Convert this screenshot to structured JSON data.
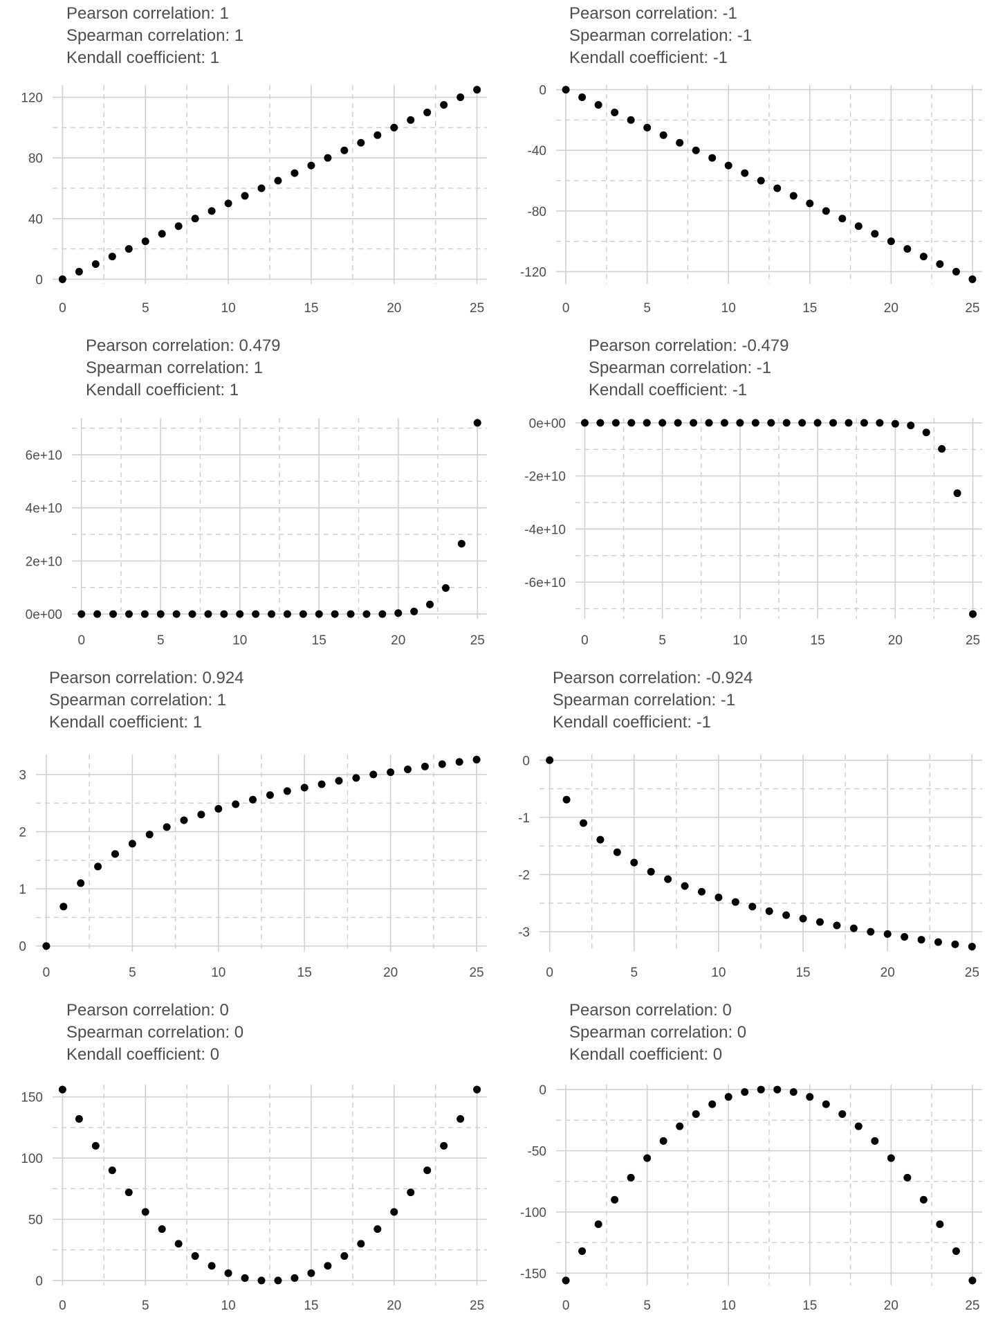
{
  "chart_data": [
    {
      "type": "scatter",
      "titles": [
        "Pearson correlation: 1",
        "Spearman correlation: 1",
        "Kendall coefficient: 1"
      ],
      "x": [
        0,
        1,
        2,
        3,
        4,
        5,
        6,
        7,
        8,
        9,
        10,
        11,
        12,
        13,
        14,
        15,
        16,
        17,
        18,
        19,
        20,
        21,
        22,
        23,
        24,
        25
      ],
      "y": [
        0,
        5,
        10,
        15,
        20,
        25,
        30,
        35,
        40,
        45,
        50,
        55,
        60,
        65,
        70,
        75,
        80,
        85,
        90,
        95,
        100,
        105,
        110,
        115,
        120,
        125
      ],
      "xlim": [
        -0.6,
        25.6
      ],
      "ylim": [
        -3,
        128
      ],
      "xticks": [
        0,
        5,
        10,
        15,
        20,
        25
      ],
      "xtick_labels": [
        "0",
        "5",
        "10",
        "15",
        "20",
        "25"
      ],
      "xminor": [
        2.5,
        7.5,
        12.5,
        17.5,
        22.5
      ],
      "yticks": [
        0,
        40,
        80,
        120
      ],
      "ytick_labels": [
        "0",
        "40",
        "80",
        "120"
      ],
      "yminor": [
        20,
        60,
        100
      ],
      "grid": true
    },
    {
      "type": "scatter",
      "titles": [
        "Pearson correlation: -1",
        "Spearman correlation: -1",
        "Kendall coefficient: -1"
      ],
      "x": [
        0,
        1,
        2,
        3,
        4,
        5,
        6,
        7,
        8,
        9,
        10,
        11,
        12,
        13,
        14,
        15,
        16,
        17,
        18,
        19,
        20,
        21,
        22,
        23,
        24,
        25
      ],
      "y": [
        0,
        -5,
        -10,
        -15,
        -20,
        -25,
        -30,
        -35,
        -40,
        -45,
        -50,
        -55,
        -60,
        -65,
        -70,
        -75,
        -80,
        -85,
        -90,
        -95,
        -100,
        -105,
        -110,
        -115,
        -120,
        -125
      ],
      "xlim": [
        -0.6,
        25.6
      ],
      "ylim": [
        -128,
        3
      ],
      "xticks": [
        0,
        5,
        10,
        15,
        20,
        25
      ],
      "xtick_labels": [
        "0",
        "5",
        "10",
        "15",
        "20",
        "25"
      ],
      "xminor": [
        2.5,
        7.5,
        12.5,
        17.5,
        22.5
      ],
      "yticks": [
        0,
        -40,
        -80,
        -120
      ],
      "ytick_labels": [
        "0",
        "-40",
        "-80",
        "-120"
      ],
      "yminor": [
        -20,
        -60,
        -100
      ],
      "grid": true
    },
    {
      "type": "scatter",
      "titles": [
        "Pearson correlation: 0.479",
        "Spearman correlation: 1",
        "Kendall coefficient: 1"
      ],
      "x": [
        0,
        1,
        2,
        3,
        4,
        5,
        6,
        7,
        8,
        9,
        10,
        11,
        12,
        13,
        14,
        15,
        16,
        17,
        18,
        19,
        20,
        21,
        22,
        23,
        24,
        25
      ],
      "y": [
        0,
        0,
        0,
        0,
        0,
        0,
        0,
        0,
        0,
        0,
        0,
        0,
        0,
        0,
        0,
        0,
        0,
        0,
        0,
        0,
        360000000,
        980000000,
        3600000000,
        9800000000,
        26500000000,
        72000000000
      ],
      "xlim": [
        -0.6,
        25.6
      ],
      "ylim": [
        -1800000000,
        73800000000
      ],
      "xticks": [
        0,
        5,
        10,
        15,
        20,
        25
      ],
      "xtick_labels": [
        "0",
        "5",
        "10",
        "15",
        "20",
        "25"
      ],
      "xminor": [
        2.5,
        7.5,
        12.5,
        17.5,
        22.5
      ],
      "yticks": [
        0,
        20000000000,
        40000000000,
        60000000000
      ],
      "ytick_labels": [
        "0e+00",
        "2e+10",
        "4e+10",
        "6e+10"
      ],
      "yminor": [
        10000000000,
        30000000000,
        50000000000,
        70000000000
      ],
      "grid": true
    },
    {
      "type": "scatter",
      "titles": [
        "Pearson correlation: -0.479",
        "Spearman correlation: -1",
        "Kendall coefficient: -1"
      ],
      "x": [
        0,
        1,
        2,
        3,
        4,
        5,
        6,
        7,
        8,
        9,
        10,
        11,
        12,
        13,
        14,
        15,
        16,
        17,
        18,
        19,
        20,
        21,
        22,
        23,
        24,
        25
      ],
      "y": [
        0,
        0,
        0,
        0,
        0,
        0,
        0,
        0,
        0,
        0,
        0,
        0,
        0,
        0,
        0,
        0,
        0,
        0,
        0,
        0,
        -360000000,
        -980000000,
        -3600000000,
        -9800000000,
        -26500000000,
        -72000000000
      ],
      "xlim": [
        -0.6,
        25.6
      ],
      "ylim": [
        -73800000000,
        1800000000
      ],
      "xticks": [
        0,
        5,
        10,
        15,
        20,
        25
      ],
      "xtick_labels": [
        "0",
        "5",
        "10",
        "15",
        "20",
        "25"
      ],
      "xminor": [
        2.5,
        7.5,
        12.5,
        17.5,
        22.5
      ],
      "yticks": [
        0,
        -20000000000,
        -40000000000,
        -60000000000
      ],
      "ytick_labels": [
        "0e+00",
        "-2e+10",
        "-4e+10",
        "-6e+10"
      ],
      "yminor": [
        -10000000000,
        -30000000000,
        -50000000000,
        -70000000000
      ],
      "grid": true
    },
    {
      "type": "scatter",
      "titles": [
        "Pearson correlation: 0.924",
        "Spearman correlation: 1",
        "Kendall coefficient: 1"
      ],
      "x": [
        0,
        1,
        2,
        3,
        4,
        5,
        6,
        7,
        8,
        9,
        10,
        11,
        12,
        13,
        14,
        15,
        16,
        17,
        18,
        19,
        20,
        21,
        22,
        23,
        24,
        25
      ],
      "y": [
        0,
        0.69,
        1.1,
        1.39,
        1.61,
        1.79,
        1.95,
        2.08,
        2.2,
        2.3,
        2.4,
        2.48,
        2.56,
        2.64,
        2.71,
        2.77,
        2.83,
        2.89,
        2.94,
        3.0,
        3.04,
        3.09,
        3.14,
        3.18,
        3.22,
        3.26
      ],
      "xlim": [
        -0.6,
        25.6
      ],
      "ylim": [
        -0.1,
        3.35
      ],
      "xticks": [
        0,
        5,
        10,
        15,
        20,
        25
      ],
      "xtick_labels": [
        "0",
        "5",
        "10",
        "15",
        "20",
        "25"
      ],
      "xminor": [
        2.5,
        7.5,
        12.5,
        17.5,
        22.5
      ],
      "yticks": [
        0,
        1,
        2,
        3
      ],
      "ytick_labels": [
        "0",
        "1",
        "2",
        "3"
      ],
      "yminor": [
        0.5,
        1.5,
        2.5
      ],
      "grid": true
    },
    {
      "type": "scatter",
      "titles": [
        "Pearson correlation: -0.924",
        "Spearman correlation: -1",
        "Kendall coefficient: -1"
      ],
      "x": [
        0,
        1,
        2,
        3,
        4,
        5,
        6,
        7,
        8,
        9,
        10,
        11,
        12,
        13,
        14,
        15,
        16,
        17,
        18,
        19,
        20,
        21,
        22,
        23,
        24,
        25
      ],
      "y": [
        0,
        -0.69,
        -1.1,
        -1.39,
        -1.61,
        -1.79,
        -1.95,
        -2.08,
        -2.2,
        -2.3,
        -2.4,
        -2.48,
        -2.56,
        -2.64,
        -2.71,
        -2.77,
        -2.83,
        -2.89,
        -2.94,
        -3.0,
        -3.04,
        -3.09,
        -3.14,
        -3.18,
        -3.22,
        -3.26
      ],
      "xlim": [
        -0.6,
        25.6
      ],
      "ylim": [
        -3.35,
        0.1
      ],
      "xticks": [
        0,
        5,
        10,
        15,
        20,
        25
      ],
      "xtick_labels": [
        "0",
        "5",
        "10",
        "15",
        "20",
        "25"
      ],
      "xminor": [
        2.5,
        7.5,
        12.5,
        17.5,
        22.5
      ],
      "yticks": [
        0,
        -1,
        -2,
        -3
      ],
      "ytick_labels": [
        "0",
        "-1",
        "-2",
        "-3"
      ],
      "yminor": [
        -0.5,
        -1.5,
        -2.5
      ],
      "grid": true
    },
    {
      "type": "scatter",
      "titles": [
        "Pearson correlation: 0",
        "Spearman correlation: 0",
        "Kendall coefficient: 0"
      ],
      "x": [
        0,
        1,
        2,
        3,
        4,
        5,
        6,
        7,
        8,
        9,
        10,
        11,
        12,
        13,
        14,
        15,
        16,
        17,
        18,
        19,
        20,
        21,
        22,
        23,
        24,
        25
      ],
      "y": [
        156,
        132,
        110,
        90,
        72,
        56,
        42,
        30,
        20,
        12,
        6,
        2,
        0,
        0,
        2,
        6,
        12,
        20,
        30,
        42,
        56,
        72,
        90,
        110,
        132,
        156
      ],
      "xlim": [
        -0.6,
        25.6
      ],
      "ylim": [
        -4,
        160
      ],
      "xticks": [
        0,
        5,
        10,
        15,
        20,
        25
      ],
      "xtick_labels": [
        "0",
        "5",
        "10",
        "15",
        "20",
        "25"
      ],
      "xminor": [
        2.5,
        7.5,
        12.5,
        17.5,
        22.5
      ],
      "yticks": [
        0,
        50,
        100,
        150
      ],
      "ytick_labels": [
        "0",
        "50",
        "100",
        "150"
      ],
      "yminor": [
        25,
        75,
        125
      ],
      "grid": true
    },
    {
      "type": "scatter",
      "titles": [
        "Pearson correlation: 0",
        "Spearman correlation: 0",
        "Kendall coefficient: 0"
      ],
      "x": [
        0,
        1,
        2,
        3,
        4,
        5,
        6,
        7,
        8,
        9,
        10,
        11,
        12,
        13,
        14,
        15,
        16,
        17,
        18,
        19,
        20,
        21,
        22,
        23,
        24,
        25
      ],
      "y": [
        -156,
        -132,
        -110,
        -90,
        -72,
        -56,
        -42,
        -30,
        -20,
        -12,
        -6,
        -2,
        0,
        0,
        -2,
        -6,
        -12,
        -20,
        -30,
        -42,
        -56,
        -72,
        -90,
        -110,
        -132,
        -156
      ],
      "xlim": [
        -0.6,
        25.6
      ],
      "ylim": [
        -160,
        4
      ],
      "xticks": [
        0,
        5,
        10,
        15,
        20,
        25
      ],
      "xtick_labels": [
        "0",
        "5",
        "10",
        "15",
        "20",
        "25"
      ],
      "xminor": [
        2.5,
        7.5,
        12.5,
        17.5,
        22.5
      ],
      "yticks": [
        0,
        -50,
        -100,
        -150
      ],
      "ytick_labels": [
        "0",
        "-50",
        "-100",
        "-150"
      ],
      "yminor": [
        -25,
        -75,
        -125
      ],
      "grid": true
    }
  ]
}
